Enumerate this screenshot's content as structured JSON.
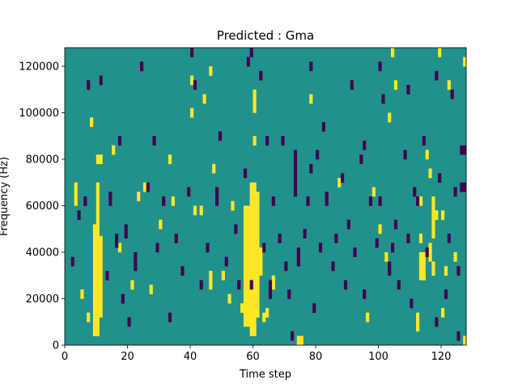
{
  "chart_data": {
    "type": "heatmap",
    "title": "Predicted : Gma",
    "xlabel": "Time step",
    "ylabel": "Frequency (Hz)",
    "xlim": [
      0,
      128
    ],
    "ylim": [
      0,
      128000
    ],
    "x_ticks": [
      0,
      20,
      40,
      60,
      80,
      100,
      120
    ],
    "y_ticks": [
      0,
      20000,
      40000,
      60000,
      80000,
      100000,
      120000
    ],
    "x_tick_labels": [
      "0",
      "20",
      "40",
      "60",
      "80",
      "100",
      "120"
    ],
    "y_tick_labels": [
      "0",
      "20000",
      "40000",
      "60000",
      "80000",
      "100000",
      "120000"
    ],
    "grid": false,
    "levels": [
      -1,
      0,
      1
    ],
    "colors": {
      "-1": "#440154",
      "0": "#21918c",
      "1": "#fde725"
    },
    "rows": 128,
    "cols": 128,
    "row_height_hz": 1000,
    "background_value": 0,
    "runs": [
      [
        9,
        10,
        4,
        52,
        1
      ],
      [
        10,
        11,
        4,
        70,
        1
      ],
      [
        11,
        12,
        12,
        47,
        1
      ],
      [
        10,
        12,
        78,
        82,
        1
      ],
      [
        5,
        6,
        20,
        24,
        1
      ],
      [
        3,
        4,
        60,
        70,
        1
      ],
      [
        57,
        59,
        8,
        60,
        1
      ],
      [
        59,
        61,
        4,
        70,
        1
      ],
      [
        61,
        62,
        12,
        66,
        1
      ],
      [
        60,
        61,
        100,
        110,
        1
      ],
      [
        62,
        63,
        30,
        42,
        1
      ],
      [
        63,
        64,
        10,
        14,
        1
      ],
      [
        66,
        67,
        24,
        30,
        1
      ],
      [
        74,
        76,
        0,
        4,
        1
      ],
      [
        113,
        115,
        28,
        40,
        1
      ],
      [
        116,
        117,
        36,
        44,
        1
      ],
      [
        117,
        118,
        30,
        36,
        1
      ],
      [
        117,
        118,
        46,
        64,
        1
      ],
      [
        118,
        119,
        54,
        58,
        1
      ],
      [
        120,
        121,
        54,
        58,
        1
      ],
      [
        113,
        114,
        44,
        48,
        1
      ],
      [
        116,
        117,
        72,
        76,
        1
      ],
      [
        115,
        116,
        80,
        84,
        1
      ],
      [
        119,
        120,
        124,
        128,
        1
      ],
      [
        127,
        128,
        120,
        124,
        1
      ],
      [
        122,
        123,
        110,
        114,
        1
      ],
      [
        64,
        65,
        12,
        16,
        1
      ],
      [
        60,
        61,
        86,
        90,
        1
      ],
      [
        23,
        24,
        62,
        66,
        1
      ],
      [
        41,
        42,
        56,
        60,
        1
      ],
      [
        46,
        47,
        24,
        32,
        1
      ],
      [
        100,
        101,
        48,
        52,
        1
      ],
      [
        103,
        104,
        96,
        100,
        1
      ],
      [
        104,
        105,
        124,
        128,
        1
      ],
      [
        127,
        128,
        0,
        4,
        1
      ],
      [
        96,
        97,
        10,
        14,
        1
      ],
      [
        112,
        113,
        6,
        14,
        1
      ],
      [
        120,
        121,
        12,
        16,
        1
      ],
      [
        21,
        22,
        24,
        28,
        1
      ],
      [
        25,
        26,
        66,
        70,
        1
      ],
      [
        30,
        31,
        50,
        54,
        1
      ],
      [
        47,
        48,
        74,
        78,
        1
      ],
      [
        46,
        47,
        116,
        120,
        1
      ],
      [
        40,
        41,
        112,
        116,
        1
      ],
      [
        40,
        41,
        98,
        102,
        1
      ],
      [
        53,
        54,
        58,
        62,
        1
      ],
      [
        78,
        79,
        104,
        108,
        1
      ],
      [
        87,
        88,
        68,
        72,
        1
      ],
      [
        98,
        99,
        64,
        68,
        1
      ],
      [
        102,
        103,
        36,
        40,
        1
      ],
      [
        105,
        106,
        110,
        114,
        1
      ],
      [
        113,
        114,
        60,
        64,
        1
      ],
      [
        121,
        122,
        30,
        34,
        1
      ],
      [
        124,
        125,
        36,
        40,
        1
      ],
      [
        7,
        8,
        10,
        14,
        1
      ],
      [
        8,
        9,
        94,
        98,
        1
      ],
      [
        15,
        16,
        82,
        86,
        1
      ],
      [
        17,
        18,
        40,
        44,
        1
      ],
      [
        27,
        28,
        22,
        26,
        1
      ],
      [
        33,
        34,
        78,
        82,
        1
      ],
      [
        34,
        35,
        60,
        64,
        1
      ],
      [
        43,
        44,
        56,
        60,
        1
      ],
      [
        44,
        45,
        104,
        108,
        1
      ],
      [
        50,
        51,
        28,
        32,
        1
      ],
      [
        52,
        53,
        18,
        22,
        1
      ],
      [
        56,
        57,
        14,
        18,
        1
      ],
      [
        2,
        3,
        34,
        38,
        -1
      ],
      [
        4,
        5,
        54,
        58,
        -1
      ],
      [
        6,
        7,
        60,
        64,
        -1
      ],
      [
        7,
        8,
        110,
        114,
        -1
      ],
      [
        13,
        14,
        28,
        32,
        -1
      ],
      [
        14,
        15,
        60,
        66,
        -1
      ],
      [
        16,
        17,
        42,
        48,
        -1
      ],
      [
        17,
        18,
        86,
        90,
        -1
      ],
      [
        18,
        19,
        18,
        22,
        -1
      ],
      [
        19,
        20,
        46,
        52,
        -1
      ],
      [
        20,
        21,
        8,
        12,
        -1
      ],
      [
        22,
        23,
        32,
        40,
        -1
      ],
      [
        26,
        27,
        66,
        70,
        -1
      ],
      [
        28,
        29,
        86,
        90,
        -1
      ],
      [
        29,
        30,
        40,
        44,
        -1
      ],
      [
        31,
        32,
        60,
        64,
        -1
      ],
      [
        33,
        34,
        10,
        14,
        -1
      ],
      [
        35,
        36,
        44,
        48,
        -1
      ],
      [
        37,
        38,
        30,
        34,
        -1
      ],
      [
        39,
        40,
        64,
        68,
        -1
      ],
      [
        41,
        42,
        110,
        114,
        -1
      ],
      [
        43,
        44,
        24,
        28,
        -1
      ],
      [
        45,
        46,
        40,
        44,
        -1
      ],
      [
        48,
        49,
        60,
        68,
        -1
      ],
      [
        49,
        50,
        88,
        92,
        -1
      ],
      [
        51,
        52,
        34,
        38,
        -1
      ],
      [
        54,
        55,
        48,
        52,
        -1
      ],
      [
        55,
        56,
        24,
        28,
        -1
      ],
      [
        57,
        58,
        72,
        76,
        -1
      ],
      [
        59,
        60,
        124,
        128,
        -1
      ],
      [
        63,
        64,
        40,
        44,
        -1
      ],
      [
        65,
        66,
        20,
        28,
        -1
      ],
      [
        66,
        67,
        60,
        64,
        -1
      ],
      [
        68,
        69,
        44,
        48,
        -1
      ],
      [
        69,
        70,
        86,
        90,
        -1
      ],
      [
        71,
        72,
        20,
        24,
        -1
      ],
      [
        72,
        73,
        2,
        6,
        -1
      ],
      [
        73,
        74,
        64,
        84,
        -1
      ],
      [
        74,
        75,
        34,
        42,
        -1
      ],
      [
        76,
        77,
        46,
        50,
        -1
      ],
      [
        77,
        78,
        60,
        64,
        -1
      ],
      [
        79,
        80,
        14,
        18,
        -1
      ],
      [
        80,
        81,
        80,
        84,
        -1
      ],
      [
        81,
        82,
        40,
        44,
        -1
      ],
      [
        82,
        83,
        92,
        96,
        -1
      ],
      [
        83,
        84,
        60,
        66,
        -1
      ],
      [
        85,
        86,
        32,
        36,
        -1
      ],
      [
        86,
        87,
        44,
        48,
        -1
      ],
      [
        88,
        89,
        70,
        74,
        -1
      ],
      [
        89,
        90,
        24,
        28,
        -1
      ],
      [
        90,
        91,
        50,
        54,
        -1
      ],
      [
        92,
        93,
        38,
        42,
        -1
      ],
      [
        94,
        95,
        78,
        82,
        -1
      ],
      [
        95,
        96,
        20,
        24,
        -1
      ],
      [
        97,
        98,
        60,
        64,
        -1
      ],
      [
        99,
        100,
        42,
        46,
        -1
      ],
      [
        101,
        102,
        104,
        108,
        -1
      ],
      [
        103,
        104,
        30,
        36,
        -1
      ],
      [
        105,
        106,
        50,
        54,
        -1
      ],
      [
        106,
        107,
        24,
        28,
        -1
      ],
      [
        108,
        109,
        80,
        84,
        -1
      ],
      [
        109,
        110,
        44,
        48,
        -1
      ],
      [
        110,
        111,
        16,
        20,
        -1
      ],
      [
        112,
        113,
        60,
        64,
        -1
      ],
      [
        114,
        115,
        86,
        90,
        -1
      ],
      [
        118,
        119,
        8,
        12,
        -1
      ],
      [
        119,
        120,
        70,
        74,
        -1
      ],
      [
        121,
        122,
        20,
        24,
        -1
      ],
      [
        122,
        123,
        44,
        48,
        -1
      ],
      [
        124,
        125,
        64,
        68,
        -1
      ],
      [
        125,
        126,
        30,
        34,
        -1
      ],
      [
        126,
        128,
        82,
        86,
        -1
      ],
      [
        126,
        128,
        66,
        70,
        -1
      ],
      [
        125,
        126,
        2,
        6,
        -1
      ],
      [
        123,
        124,
        106,
        110,
        -1
      ],
      [
        59,
        60,
        24,
        28,
        -1
      ],
      [
        64,
        65,
        86,
        90,
        -1
      ],
      [
        70,
        71,
        32,
        36,
        -1
      ],
      [
        78,
        79,
        74,
        78,
        -1
      ],
      [
        91,
        92,
        110,
        114,
        -1
      ],
      [
        95,
        96,
        84,
        88,
        -1
      ],
      [
        100,
        101,
        60,
        64,
        -1
      ],
      [
        104,
        105,
        40,
        44,
        -1
      ],
      [
        111,
        112,
        64,
        68,
        -1
      ],
      [
        115,
        116,
        38,
        42,
        -1
      ],
      [
        11,
        12,
        112,
        116,
        -1
      ],
      [
        24,
        25,
        118,
        122,
        -1
      ],
      [
        40,
        41,
        124,
        128,
        -1
      ],
      [
        58,
        59,
        120,
        124,
        -1
      ],
      [
        62,
        63,
        114,
        118,
        -1
      ],
      [
        78,
        79,
        118,
        122,
        -1
      ],
      [
        100,
        101,
        118,
        122,
        -1
      ],
      [
        109,
        110,
        108,
        112,
        -1
      ],
      [
        118,
        119,
        114,
        118,
        -1
      ]
    ]
  }
}
